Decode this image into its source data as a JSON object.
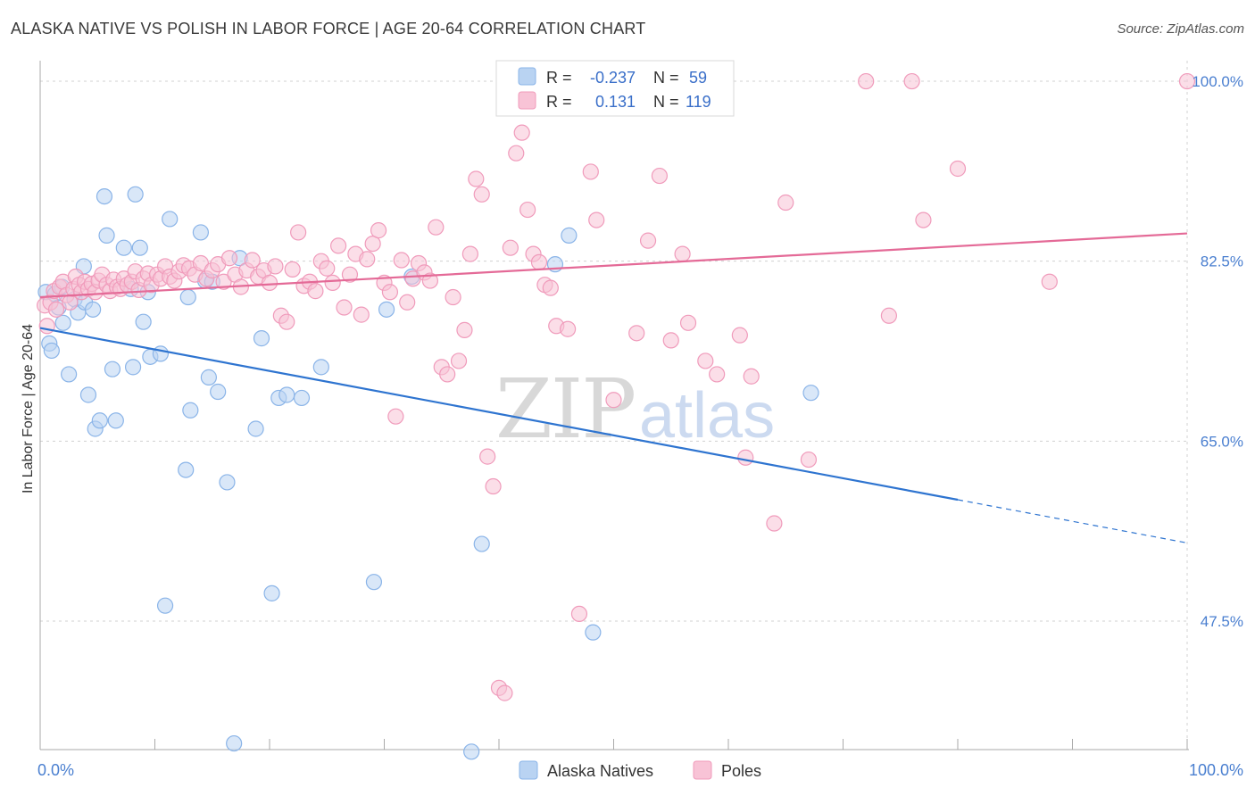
{
  "title": "ALASKA NATIVE VS POLISH IN LABOR FORCE | AGE 20-64 CORRELATION CHART",
  "source": "Source: ZipAtlas.com",
  "watermark": {
    "zip": "ZIP",
    "atlas": "atlas"
  },
  "colors": {
    "blue_fill": "#b9d3f2",
    "blue_stroke": "#8ab4e8",
    "blue_line": "#2e74d0",
    "pink_fill": "#f8c3d6",
    "pink_stroke": "#f09bbb",
    "pink_line": "#e46a97",
    "grid": "#d0d0d0",
    "tick_text": "#4a7fd0"
  },
  "legend": {
    "rows": [
      {
        "r_label": "R =",
        "r_value": "-0.237",
        "n_label": "N =",
        "n_value": "59",
        "series": "blue"
      },
      {
        "r_label": "R =",
        "r_value": "0.131",
        "n_label": "N =",
        "n_value": "119",
        "series": "pink"
      }
    ]
  },
  "chart_data": {
    "type": "scatter",
    "title": "ALASKA NATIVE VS POLISH IN LABOR FORCE | AGE 20-64 CORRELATION CHART",
    "xlabel": "",
    "ylabel": "In Labor Force | Age 20-64",
    "xlim": [
      0,
      100
    ],
    "ylim": [
      35,
      102
    ],
    "x_tick_labels": [
      "0.0%",
      "100.0%"
    ],
    "y_ticks": [
      47.5,
      65.0,
      82.5,
      100.0
    ],
    "y_tick_labels": [
      "47.5%",
      "65.0%",
      "82.5%",
      "100.0%"
    ],
    "series": [
      {
        "name": "Alaska Natives",
        "color": "blue",
        "trend": {
          "x0": 0,
          "y0": 76.0,
          "x1": 80,
          "y1": 59.3,
          "x_dash_end": 100,
          "y_dash_end": 55.1
        },
        "points": [
          [
            0.5,
            79.5
          ],
          [
            0.8,
            74.5
          ],
          [
            1,
            73.8
          ],
          [
            1.3,
            79.3
          ],
          [
            1.6,
            78
          ],
          [
            1.9,
            80
          ],
          [
            2,
            76.5
          ],
          [
            2.5,
            71.5
          ],
          [
            3,
            78.8
          ],
          [
            3.3,
            77.5
          ],
          [
            3.8,
            82
          ],
          [
            3.9,
            78.5
          ],
          [
            4.2,
            69.5
          ],
          [
            4.6,
            77.8
          ],
          [
            4.8,
            66.2
          ],
          [
            5.2,
            67
          ],
          [
            5.6,
            88.8
          ],
          [
            5.8,
            85
          ],
          [
            6.3,
            72
          ],
          [
            6.6,
            67
          ],
          [
            7.3,
            83.8
          ],
          [
            7.9,
            79.8
          ],
          [
            8.1,
            72.2
          ],
          [
            8.3,
            89
          ],
          [
            8.7,
            83.8
          ],
          [
            9,
            76.6
          ],
          [
            9.4,
            79.5
          ],
          [
            9.6,
            73.2
          ],
          [
            10.5,
            73.5
          ],
          [
            10.9,
            49
          ],
          [
            11.3,
            86.6
          ],
          [
            12.7,
            62.2
          ],
          [
            12.9,
            79
          ],
          [
            13.1,
            68
          ],
          [
            14,
            85.3
          ],
          [
            14.4,
            80.6
          ],
          [
            14.7,
            71.2
          ],
          [
            15,
            80.5
          ],
          [
            15.5,
            69.8
          ],
          [
            16.3,
            61
          ],
          [
            16.9,
            35.6
          ],
          [
            17.4,
            82.8
          ],
          [
            18.8,
            66.2
          ],
          [
            19.3,
            75
          ],
          [
            20.2,
            50.2
          ],
          [
            20.8,
            69.2
          ],
          [
            21.5,
            69.5
          ],
          [
            22.8,
            69.2
          ],
          [
            24.5,
            72.2
          ],
          [
            29.1,
            51.3
          ],
          [
            30.2,
            77.8
          ],
          [
            32.4,
            81
          ],
          [
            37.6,
            34.8
          ],
          [
            38.5,
            55
          ],
          [
            44.9,
            82.2
          ],
          [
            46.1,
            85
          ],
          [
            48.2,
            46.4
          ],
          [
            67.2,
            69.7
          ]
        ]
      },
      {
        "name": "Poles",
        "color": "pink",
        "trend": {
          "x0": 0,
          "y0": 79.0,
          "x1": 100,
          "y1": 85.2
        },
        "points": [
          [
            0.4,
            78.2
          ],
          [
            0.6,
            76.2
          ],
          [
            0.9,
            78.5
          ],
          [
            1.2,
            79.6
          ],
          [
            1.4,
            77.8
          ],
          [
            1.7,
            80
          ],
          [
            2,
            80.5
          ],
          [
            2.3,
            79.2
          ],
          [
            2.6,
            78.5
          ],
          [
            2.9,
            79.8
          ],
          [
            3.1,
            81
          ],
          [
            3.4,
            80.2
          ],
          [
            3.6,
            79.5
          ],
          [
            3.9,
            80.5
          ],
          [
            4.2,
            79.8
          ],
          [
            4.5,
            80.3
          ],
          [
            4.8,
            79.5
          ],
          [
            5.1,
            80.6
          ],
          [
            5.4,
            81.2
          ],
          [
            5.8,
            80.2
          ],
          [
            6.1,
            79.6
          ],
          [
            6.4,
            80.7
          ],
          [
            6.7,
            80
          ],
          [
            7,
            79.8
          ],
          [
            7.3,
            80.8
          ],
          [
            7.6,
            80.2
          ],
          [
            8,
            80.5
          ],
          [
            8.3,
            81.5
          ],
          [
            8.6,
            79.7
          ],
          [
            9,
            80.8
          ],
          [
            9.4,
            81.3
          ],
          [
            9.7,
            80.2
          ],
          [
            10.2,
            81.2
          ],
          [
            10.5,
            80.8
          ],
          [
            10.9,
            82
          ],
          [
            11.3,
            81
          ],
          [
            11.7,
            80.6
          ],
          [
            12.1,
            81.5
          ],
          [
            12.5,
            82.1
          ],
          [
            13,
            81.8
          ],
          [
            13.5,
            81.2
          ],
          [
            14,
            82.3
          ],
          [
            14.5,
            80.8
          ],
          [
            15,
            81.6
          ],
          [
            15.5,
            82.2
          ],
          [
            16,
            80.5
          ],
          [
            16.5,
            82.8
          ],
          [
            17,
            81.2
          ],
          [
            17.5,
            80
          ],
          [
            18,
            81.6
          ],
          [
            18.5,
            82.6
          ],
          [
            19,
            81
          ],
          [
            19.5,
            81.6
          ],
          [
            20,
            80.4
          ],
          [
            20.5,
            82
          ],
          [
            21,
            77.2
          ],
          [
            21.5,
            76.6
          ],
          [
            22,
            81.7
          ],
          [
            22.5,
            85.3
          ],
          [
            23,
            80.1
          ],
          [
            23.5,
            80.5
          ],
          [
            24,
            79.6
          ],
          [
            24.5,
            82.5
          ],
          [
            25,
            81.8
          ],
          [
            25.5,
            80.4
          ],
          [
            26,
            84
          ],
          [
            26.5,
            78
          ],
          [
            27,
            81.2
          ],
          [
            27.5,
            83.2
          ],
          [
            28,
            77.3
          ],
          [
            28.5,
            82.7
          ],
          [
            29,
            84.2
          ],
          [
            29.5,
            85.5
          ],
          [
            30,
            80.4
          ],
          [
            30.5,
            79.5
          ],
          [
            31,
            67.4
          ],
          [
            31.5,
            82.6
          ],
          [
            32,
            78.5
          ],
          [
            32.5,
            80.8
          ],
          [
            33,
            82.3
          ],
          [
            33.5,
            81.4
          ],
          [
            34,
            80.6
          ],
          [
            34.5,
            85.8
          ],
          [
            35,
            72.2
          ],
          [
            35.5,
            71.5
          ],
          [
            36,
            79
          ],
          [
            36.5,
            72.8
          ],
          [
            37,
            75.8
          ],
          [
            37.5,
            83.2
          ],
          [
            38,
            90.5
          ],
          [
            38.5,
            89
          ],
          [
            39,
            63.5
          ],
          [
            39.5,
            60.6
          ],
          [
            40,
            41
          ],
          [
            40.5,
            40.5
          ],
          [
            41,
            83.8
          ],
          [
            41.5,
            93
          ],
          [
            42,
            95
          ],
          [
            42.5,
            87.5
          ],
          [
            43,
            83.2
          ],
          [
            43.5,
            82.4
          ],
          [
            44,
            80.2
          ],
          [
            44.5,
            79.9
          ],
          [
            45,
            76.2
          ],
          [
            46,
            75.9
          ],
          [
            47,
            48.2
          ],
          [
            48,
            91.2
          ],
          [
            48.5,
            86.5
          ],
          [
            50,
            69
          ],
          [
            52,
            75.5
          ],
          [
            53,
            84.5
          ],
          [
            54,
            90.8
          ],
          [
            55,
            74.8
          ],
          [
            56,
            83.2
          ],
          [
            56.5,
            76.5
          ],
          [
            58,
            72.8
          ],
          [
            59,
            71.5
          ],
          [
            61,
            75.3
          ],
          [
            61.5,
            63.4
          ],
          [
            62,
            71.3
          ],
          [
            64,
            57
          ],
          [
            65,
            88.2
          ],
          [
            67,
            63.2
          ],
          [
            72,
            100
          ],
          [
            74,
            77.2
          ],
          [
            76,
            100
          ],
          [
            77,
            86.5
          ],
          [
            80,
            91.5
          ],
          [
            88,
            80.5
          ],
          [
            100,
            100
          ]
        ]
      }
    ]
  },
  "bottom_legend": {
    "items": [
      {
        "label": "Alaska Natives",
        "color": "blue"
      },
      {
        "label": "Poles",
        "color": "pink"
      }
    ]
  }
}
